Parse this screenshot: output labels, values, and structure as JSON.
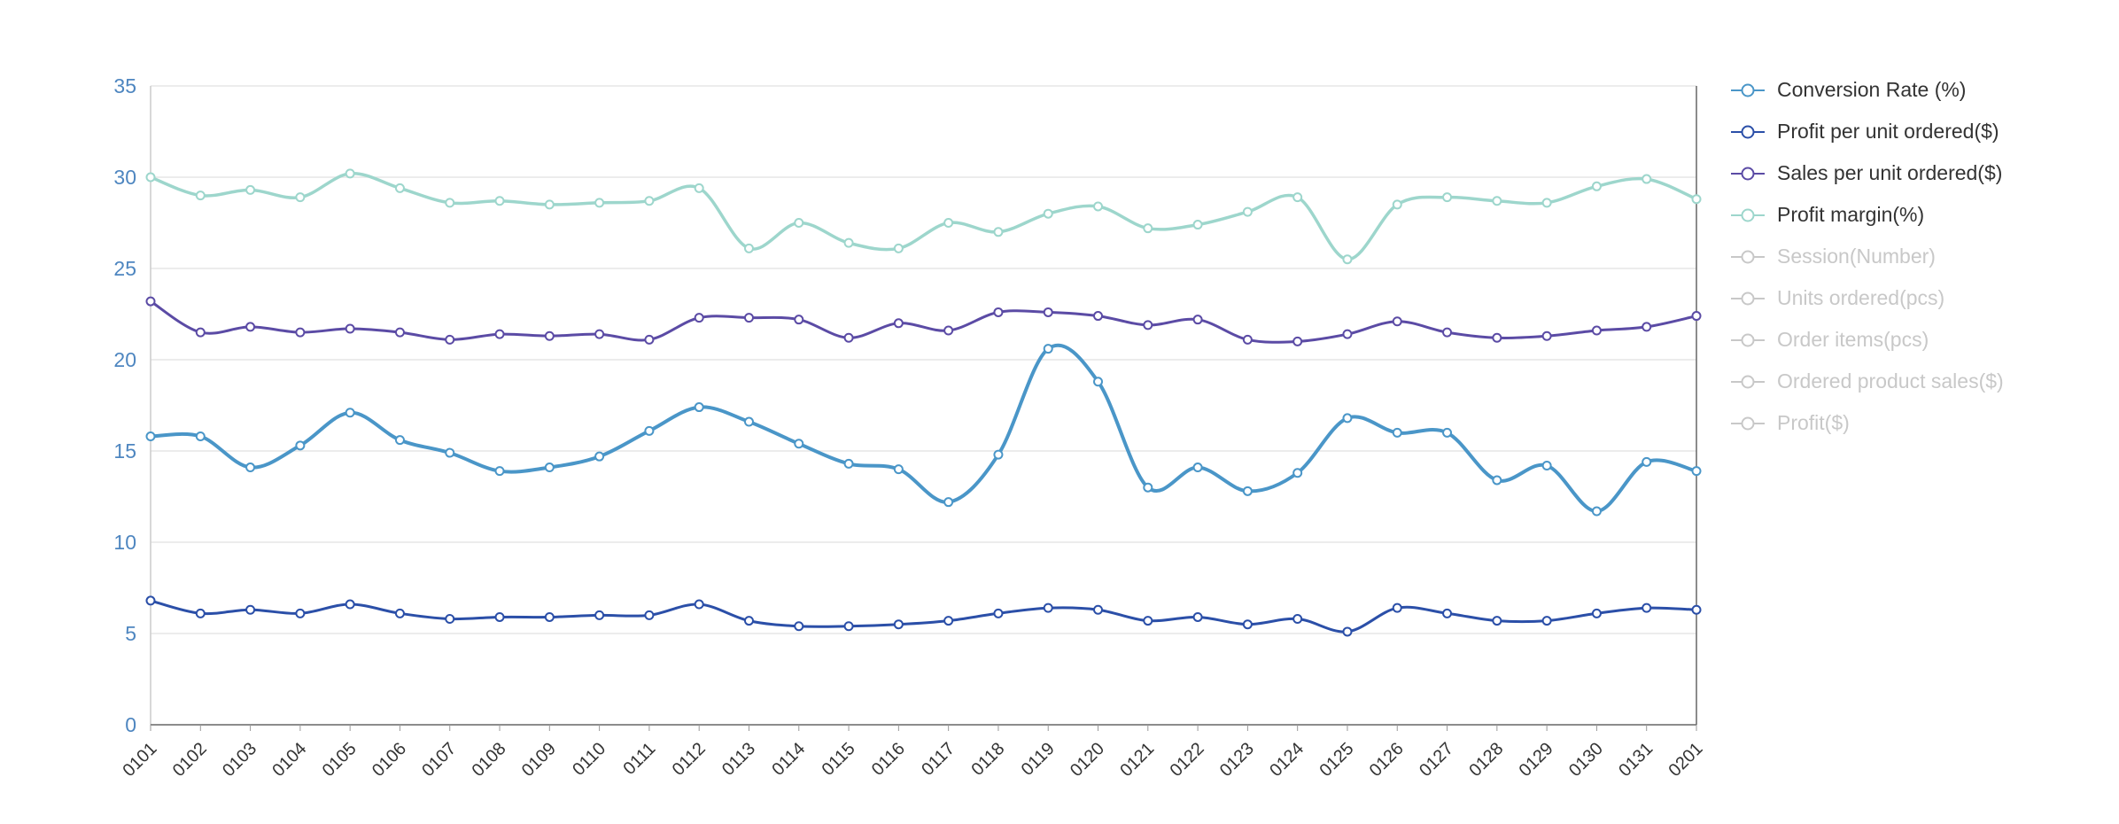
{
  "chart_data": {
    "type": "line",
    "title": "",
    "xlabel": "",
    "ylabel": "",
    "smooth": true,
    "grid": true,
    "legend_position": "right",
    "ylim": [
      0,
      35
    ],
    "yticks": [
      0,
      5,
      10,
      15,
      20,
      25,
      30,
      35
    ],
    "x": [
      "0101",
      "0102",
      "0103",
      "0104",
      "0105",
      "0106",
      "0107",
      "0108",
      "0109",
      "0110",
      "0111",
      "0112",
      "0113",
      "0114",
      "0115",
      "0116",
      "0117",
      "0118",
      "0119",
      "0120",
      "0121",
      "0122",
      "0123",
      "0124",
      "0125",
      "0126",
      "0127",
      "0128",
      "0129",
      "0130",
      "0131",
      "0201"
    ],
    "series": [
      {
        "name": "Profit margin(%)",
        "color": "#9dd6cc",
        "line_width": 3.5,
        "values": [
          30.0,
          29.0,
          29.3,
          28.9,
          30.2,
          29.4,
          28.6,
          28.7,
          28.5,
          28.6,
          28.7,
          29.4,
          26.1,
          27.5,
          26.4,
          26.1,
          27.5,
          27.0,
          28.0,
          28.4,
          27.2,
          27.4,
          28.1,
          28.9,
          25.5,
          28.5,
          28.9,
          28.7,
          28.6,
          29.5,
          29.9,
          28.8
        ]
      },
      {
        "name": "Sales per unit ordered($)",
        "color": "#5b4ba5",
        "line_width": 3,
        "values": [
          23.2,
          21.5,
          21.8,
          21.5,
          21.7,
          21.5,
          21.1,
          21.4,
          21.3,
          21.4,
          21.1,
          22.3,
          22.3,
          22.2,
          21.2,
          22.0,
          21.6,
          22.6,
          22.6,
          22.4,
          21.9,
          22.2,
          21.1,
          21.0,
          21.4,
          22.1,
          21.5,
          21.2,
          21.3,
          21.6,
          21.8,
          22.4
        ]
      },
      {
        "name": "Conversion Rate (%)",
        "color": "#4a96c8",
        "line_width": 4,
        "values": [
          15.8,
          15.8,
          14.1,
          15.3,
          17.1,
          15.6,
          14.9,
          13.9,
          14.1,
          14.7,
          16.1,
          17.4,
          16.6,
          15.4,
          14.3,
          14.0,
          12.2,
          14.8,
          20.6,
          18.8,
          13.0,
          14.1,
          12.8,
          13.8,
          16.8,
          16.0,
          16.0,
          13.4,
          14.2,
          11.7,
          14.4,
          13.9
        ]
      },
      {
        "name": "Profit per unit ordered($)",
        "color": "#2b4fa8",
        "line_width": 3,
        "values": [
          6.8,
          6.1,
          6.3,
          6.1,
          6.6,
          6.1,
          5.8,
          5.9,
          5.9,
          6.0,
          6.0,
          6.6,
          5.7,
          5.4,
          5.4,
          5.5,
          5.7,
          6.1,
          6.4,
          6.3,
          5.7,
          5.9,
          5.5,
          5.8,
          5.1,
          6.4,
          6.1,
          5.7,
          5.7,
          6.1,
          6.4,
          6.3
        ]
      }
    ],
    "axis_colors": {
      "y_label": "#4e86c0",
      "x_label": "#333333",
      "grid_line": "#e6e6e6",
      "left_axis": "#cccccc",
      "right_axis": "#666666",
      "bottom_axis": "#666666",
      "tick": "#999999"
    }
  },
  "legend": {
    "inactive_color": "#c8c8c8",
    "items": [
      {
        "label": "Conversion Rate (%)",
        "color": "#4a96c8",
        "active": true
      },
      {
        "label": "Profit per unit ordered($)",
        "color": "#2b4fa8",
        "active": true
      },
      {
        "label": "Sales per unit ordered($)",
        "color": "#5b4ba5",
        "active": true
      },
      {
        "label": "Profit margin(%)",
        "color": "#9dd6cc",
        "active": true
      },
      {
        "label": "Session(Number)",
        "color": "#c8c8c8",
        "active": false
      },
      {
        "label": "Units ordered(pcs)",
        "color": "#c8c8c8",
        "active": false
      },
      {
        "label": "Order items(pcs)",
        "color": "#c8c8c8",
        "active": false
      },
      {
        "label": "Ordered product sales($)",
        "color": "#c8c8c8",
        "active": false
      },
      {
        "label": "Profit($)",
        "color": "#c8c8c8",
        "active": false
      }
    ]
  }
}
